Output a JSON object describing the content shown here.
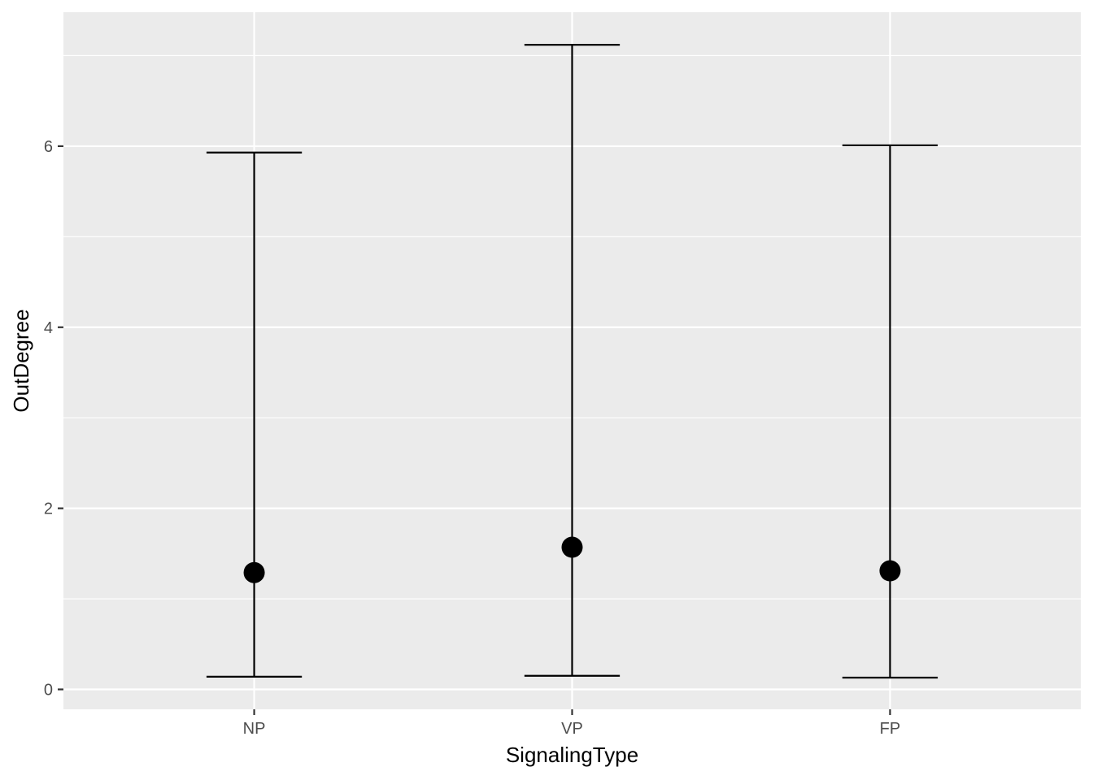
{
  "chart_data": {
    "type": "errorbar",
    "categories": [
      "NP",
      "VP",
      "FP"
    ],
    "series": [
      {
        "mean": [
          1.29,
          1.57,
          1.31
        ],
        "lower": [
          0.14,
          0.15,
          0.13
        ],
        "upper": [
          5.93,
          7.12,
          6.01
        ]
      }
    ],
    "xlabel": "SignalingType",
    "ylabel": "OutDegree",
    "ylim": [
      -0.22,
      7.48
    ],
    "yticks": [
      0,
      2,
      4,
      6
    ],
    "grid": true,
    "colors": {
      "panel": "#ebebeb",
      "grid": "#ffffff",
      "marks": "#000000",
      "tick": "#333333",
      "tick_label": "#4d4d4d"
    }
  }
}
